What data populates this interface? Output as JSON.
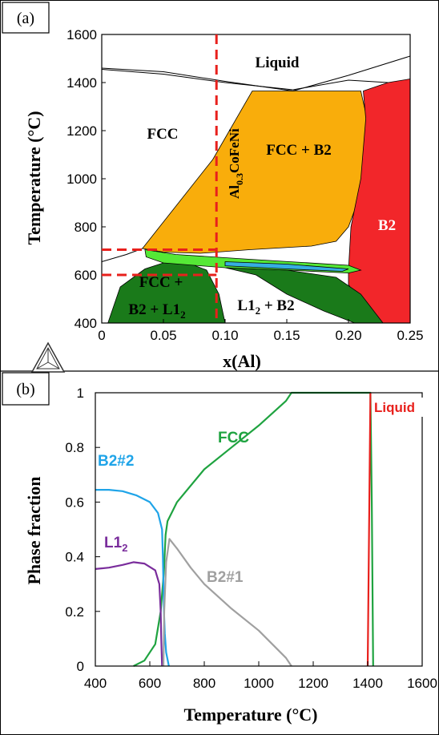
{
  "chart_data": [
    {
      "panel": "(a)",
      "type": "area",
      "xlabel": "x(Al)",
      "ylabel": "Temperature (°C)",
      "xlim": [
        0,
        0.25
      ],
      "ylim": [
        400,
        1600
      ],
      "xticks": [
        "0",
        "0.05",
        "0.10",
        "0.15",
        "0.20",
        "0.25"
      ],
      "yticks": [
        "400",
        "600",
        "800",
        "1000",
        "1200",
        "1400",
        "1600"
      ],
      "regions": [
        {
          "label": "Liquid",
          "color": "#ffffff"
        },
        {
          "label": "FCC",
          "color": "#ffffff"
        },
        {
          "label": "FCC + B2",
          "color": "#f9ad0b"
        },
        {
          "label": "B2",
          "color": "#f2262a"
        },
        {
          "label": "FCC +",
          "label2": "B2 + L1",
          "sub": "2",
          "color": "#1a7a1a"
        },
        {
          "label": "L1",
          "sub": "2",
          "label2": " + B2",
          "color": "#1a7a1a"
        }
      ],
      "minor_phase_colors": [
        "#55e836",
        "#36aee0"
      ],
      "composition_marker": {
        "label": "Al",
        "sub": "0.3",
        "label2": "CoFeNi",
        "x": 0.093,
        "color": "#e8201c"
      },
      "marked_temperatures": [
        705,
        600
      ],
      "polygons": {
        "fcc_b2": [
          [
            0.033,
            710
          ],
          [
            0.09,
            1080
          ],
          [
            0.122,
            1365
          ],
          [
            0.21,
            1365
          ],
          [
            0.215,
            1250
          ],
          [
            0.212,
            1000
          ],
          [
            0.205,
            870
          ],
          [
            0.2,
            800
          ],
          [
            0.19,
            740
          ],
          [
            0.17,
            720
          ],
          [
            0.12,
            705
          ],
          [
            0.08,
            690
          ],
          [
            0.05,
            695
          ]
        ],
        "b2": [
          [
            0.212,
            1365
          ],
          [
            0.232,
            1400
          ],
          [
            0.25,
            1415
          ],
          [
            0.25,
            400
          ],
          [
            0.228,
            400
          ],
          [
            0.205,
            520
          ],
          [
            0.2,
            560
          ],
          [
            0.2,
            620
          ],
          [
            0.202,
            800
          ],
          [
            0.21,
            1000
          ],
          [
            0.214,
            1250
          ]
        ],
        "light_green": [
          [
            0.035,
            705
          ],
          [
            0.06,
            685
          ],
          [
            0.12,
            665
          ],
          [
            0.2,
            640
          ],
          [
            0.21,
            620
          ],
          [
            0.2,
            608
          ],
          [
            0.15,
            620
          ],
          [
            0.1,
            630
          ],
          [
            0.05,
            650
          ],
          [
            0.036,
            675
          ]
        ],
        "blue": [
          [
            0.1,
            655
          ],
          [
            0.15,
            645
          ],
          [
            0.2,
            625
          ],
          [
            0.195,
            615
          ],
          [
            0.15,
            625
          ],
          [
            0.1,
            638
          ]
        ],
        "dark_green_left": [
          [
            0.005,
            400
          ],
          [
            0.015,
            550
          ],
          [
            0.035,
            625
          ],
          [
            0.05,
            650
          ],
          [
            0.07,
            650
          ],
          [
            0.085,
            620
          ],
          [
            0.095,
            520
          ],
          [
            0.1,
            400
          ]
        ],
        "dark_green_right": [
          [
            0.1,
            630
          ],
          [
            0.15,
            620
          ],
          [
            0.19,
            590
          ],
          [
            0.21,
            520
          ],
          [
            0.228,
            400
          ],
          [
            0.205,
            400
          ],
          [
            0.18,
            450
          ],
          [
            0.15,
            520
          ],
          [
            0.125,
            600
          ]
        ]
      },
      "boundary_lines": {
        "liquidus_left": [
          [
            0,
            1460
          ],
          [
            0.05,
            1445
          ],
          [
            0.1,
            1405
          ],
          [
            0.155,
            1365
          ]
        ],
        "solidus_left": [
          [
            0,
            1455
          ],
          [
            0.05,
            1435
          ],
          [
            0.1,
            1400
          ],
          [
            0.155,
            1370
          ]
        ],
        "liquidus_right": [
          [
            0.155,
            1365
          ],
          [
            0.2,
            1430
          ],
          [
            0.25,
            1510
          ]
        ],
        "solidus_right": [
          [
            0.155,
            1370
          ],
          [
            0.2,
            1410
          ],
          [
            0.232,
            1400
          ]
        ],
        "fcc_lower": [
          [
            0,
            655
          ],
          [
            0.02,
            685
          ],
          [
            0.033,
            710
          ]
        ]
      }
    },
    {
      "panel": "(b)",
      "type": "line",
      "xlabel": "Temperature (°C)",
      "ylabel": "Phase fraction",
      "xlim": [
        400,
        1600
      ],
      "ylim": [
        0,
        1
      ],
      "xticks": [
        "400",
        "600",
        "800",
        "1000",
        "1200",
        "1400",
        "1600"
      ],
      "yticks": [
        "0",
        "0.2",
        "0.4",
        "0.6",
        "0.8",
        "1"
      ],
      "series": [
        {
          "name": "FCC",
          "color": "#1fa340",
          "points": [
            [
              540,
              0
            ],
            [
              580,
              0.02
            ],
            [
              620,
              0.08
            ],
            [
              640,
              0.2
            ],
            [
              652,
              0.35
            ],
            [
              658,
              0.48
            ],
            [
              665,
              0.53
            ],
            [
              700,
              0.6
            ],
            [
              800,
              0.72
            ],
            [
              900,
              0.8
            ],
            [
              1000,
              0.88
            ],
            [
              1100,
              0.97
            ],
            [
              1120,
              1
            ],
            [
              1410,
              1
            ],
            [
              1415,
              0.6
            ],
            [
              1420,
              0
            ]
          ]
        },
        {
          "name": "B2#2",
          "color": "#1fa4e8",
          "points": [
            [
              400,
              0.645
            ],
            [
              450,
              0.645
            ],
            [
              500,
              0.64
            ],
            [
              550,
              0.625
            ],
            [
              600,
              0.6
            ],
            [
              630,
              0.56
            ],
            [
              645,
              0.5
            ],
            [
              648,
              0.4
            ],
            [
              650,
              0.3
            ],
            [
              652,
              0.2
            ],
            [
              655,
              0.12
            ],
            [
              660,
              0.05
            ],
            [
              670,
              0
            ]
          ]
        },
        {
          "name": "L1",
          "sub": "2",
          "color": "#7a2d9c",
          "points": [
            [
              400,
              0.355
            ],
            [
              450,
              0.36
            ],
            [
              500,
              0.37
            ],
            [
              540,
              0.38
            ],
            [
              580,
              0.375
            ],
            [
              620,
              0.35
            ],
            [
              635,
              0.3
            ],
            [
              640,
              0.2
            ],
            [
              642,
              0.1
            ],
            [
              645,
              0
            ]
          ]
        },
        {
          "name": "B2#1",
          "color": "#a0a0a0",
          "points": [
            [
              650,
              0
            ],
            [
              653,
              0.2
            ],
            [
              660,
              0.38
            ],
            [
              672,
              0.465
            ],
            [
              700,
              0.43
            ],
            [
              750,
              0.36
            ],
            [
              800,
              0.3
            ],
            [
              900,
              0.21
            ],
            [
              1000,
              0.13
            ],
            [
              1100,
              0.03
            ],
            [
              1120,
              0
            ]
          ]
        },
        {
          "name": "Liquid",
          "color": "#e8201c",
          "points": [
            [
              1400,
              0
            ],
            [
              1405,
              0.5
            ],
            [
              1410,
              1
            ]
          ]
        }
      ]
    }
  ]
}
